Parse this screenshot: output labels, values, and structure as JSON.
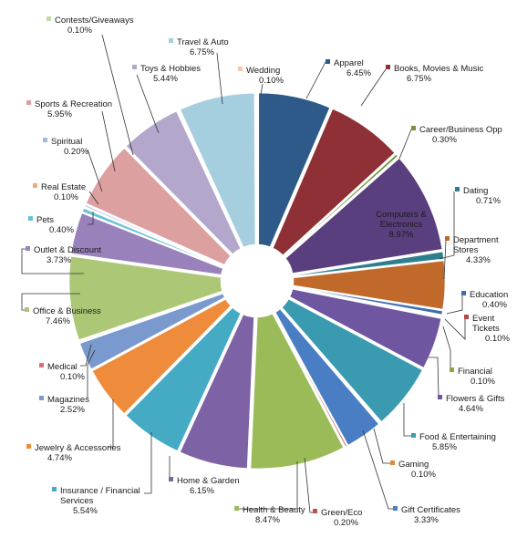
{
  "chart_data": {
    "type": "pie",
    "title": "",
    "exploded": true,
    "legend": "none",
    "slices": [
      {
        "name": "Apparel",
        "value_label": "6.45%",
        "value": 6.45,
        "color": "#2E5A8A"
      },
      {
        "name": "Books, Movies & Music",
        "value_label": "6.75%",
        "value": 6.75,
        "color": "#8E3035"
      },
      {
        "name": "Career/Business Opp",
        "value_label": "0.30%",
        "value": 0.3,
        "color": "#76923C"
      },
      {
        "name": "Computers & Electronics",
        "value_label": "8.97%",
        "value": 8.97,
        "color": "#5A3F7E"
      },
      {
        "name": "Dating",
        "value_label": "0.71%",
        "value": 0.71,
        "color": "#2E7F8E"
      },
      {
        "name": "Department Stores",
        "value_label": "4.33%",
        "value": 4.33,
        "color": "#C0692A"
      },
      {
        "name": "Education",
        "value_label": "0.40%",
        "value": 0.4,
        "color": "#3D6FAE"
      },
      {
        "name": "Event Tickets",
        "value_label": "0.10%",
        "value": 0.1,
        "color": "#B74A48"
      },
      {
        "name": "Financial",
        "value_label": "0.10%",
        "value": 0.1,
        "color": "#8AA646"
      },
      {
        "name": "Flowers & Gifts",
        "value_label": "4.64%",
        "value": 4.64,
        "color": "#6F56A0"
      },
      {
        "name": "Food & Entertaining",
        "value_label": "5.85%",
        "value": 5.85,
        "color": "#3A9AB0"
      },
      {
        "name": "Gaming",
        "value_label": "0.10%",
        "value": 0.1,
        "color": "#E08A3C"
      },
      {
        "name": "Gift Certificates",
        "value_label": "3.33%",
        "value": 3.33,
        "color": "#4A7EC4"
      },
      {
        "name": "Green/Eco",
        "value_label": "0.20%",
        "value": 0.2,
        "color": "#C0504D"
      },
      {
        "name": "Health & Beauty",
        "value_label": "8.47%",
        "value": 8.47,
        "color": "#9BBB59"
      },
      {
        "name": "Home & Garden",
        "value_label": "6.15%",
        "value": 6.15,
        "color": "#7E62A6"
      },
      {
        "name": "Insurance / Financial Services",
        "value_label": "5.54%",
        "value": 5.54,
        "color": "#45ABC5"
      },
      {
        "name": "Jewelry & Accessories",
        "value_label": "4.74%",
        "value": 4.74,
        "color": "#EE8C3C"
      },
      {
        "name": "Magazines",
        "value_label": "2.52%",
        "value": 2.52,
        "color": "#7A99CF"
      },
      {
        "name": "Medical",
        "value_label": "0.10%",
        "value": 0.1,
        "color": "#D27573"
      },
      {
        "name": "Office & Business",
        "value_label": "7.46%",
        "value": 7.46,
        "color": "#ACC877"
      },
      {
        "name": "Outlet & Discount",
        "value_label": "3.73%",
        "value": 3.73,
        "color": "#9981BC"
      },
      {
        "name": "Pets",
        "value_label": "0.40%",
        "value": 0.4,
        "color": "#6BC2D6"
      },
      {
        "name": "Real Estate",
        "value_label": "0.10%",
        "value": 0.1,
        "color": "#F4A979"
      },
      {
        "name": "Spiritual",
        "value_label": "0.20%",
        "value": 0.2,
        "color": "#A5B8DD"
      },
      {
        "name": "Sports & Recreation",
        "value_label": "5.95%",
        "value": 5.95,
        "color": "#DCA0A0"
      },
      {
        "name": "Toys & Hobbies",
        "value_label": "5.44%",
        "value": 5.44,
        "color": "#B3A7CB"
      },
      {
        "name": "Contests/Giveaways",
        "value_label": "0.10%",
        "value": 0.1,
        "color": "#C5D9A5"
      },
      {
        "name": "Travel & Auto",
        "value_label": "6.75%",
        "value": 6.75,
        "color": "#A5CFDE"
      },
      {
        "name": "Wedding",
        "value_label": "0.10%",
        "value": 0.1,
        "color": "#F7C7AA"
      }
    ]
  }
}
